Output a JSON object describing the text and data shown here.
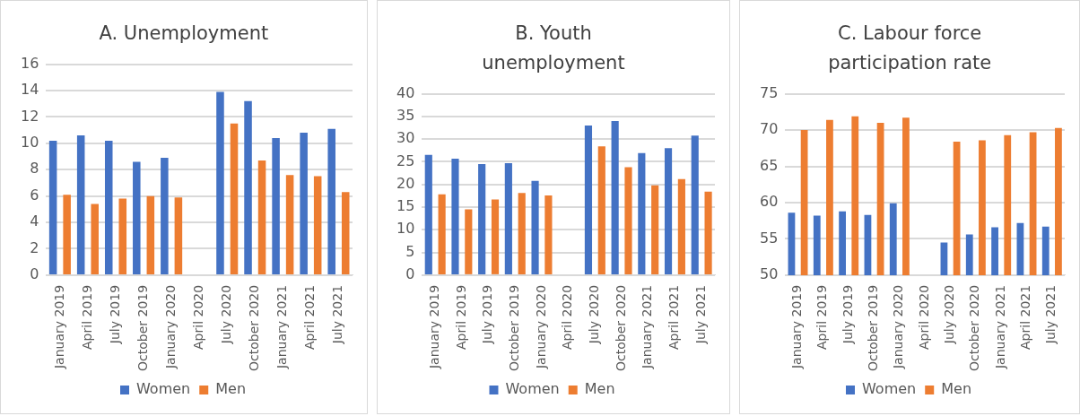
{
  "chart_data": [
    {
      "type": "bar",
      "title": "A. Unemployment",
      "categories": [
        "January 2019",
        "April 2019",
        "July 2019",
        "October 2019",
        "January 2020",
        "April 2020",
        "July 2020",
        "October 2020",
        "January 2021",
        "April 2021",
        "July 2021"
      ],
      "series": [
        {
          "name": "Women",
          "color": "#4472c4",
          "values": [
            10.2,
            10.6,
            10.2,
            8.6,
            8.9,
            null,
            13.9,
            13.2,
            10.4,
            10.8,
            11.1
          ]
        },
        {
          "name": "Men",
          "color": "#ed7d31",
          "values": [
            6.1,
            5.4,
            5.8,
            6.0,
            5.9,
            null,
            11.5,
            8.7,
            7.6,
            7.5,
            6.3
          ]
        }
      ],
      "ylim": [
        0,
        16
      ],
      "yticks": [
        0,
        2,
        4,
        6,
        8,
        10,
        12,
        14,
        16
      ],
      "grid": "y",
      "legend": "bottom"
    },
    {
      "type": "bar",
      "title": "B. Youth unemployment",
      "categories": [
        "January 2019",
        "April 2019",
        "July 2019",
        "October 2019",
        "January 2020",
        "April 2020",
        "July 2020",
        "October 2020",
        "January 2021",
        "April 2021",
        "July 2021"
      ],
      "series": [
        {
          "name": "Women",
          "color": "#4472c4",
          "values": [
            26.5,
            25.7,
            24.5,
            24.7,
            20.8,
            null,
            33.0,
            34.0,
            26.9,
            28.0,
            30.8
          ]
        },
        {
          "name": "Men",
          "color": "#ed7d31",
          "values": [
            17.8,
            14.5,
            16.7,
            18.1,
            17.6,
            null,
            28.4,
            23.8,
            19.8,
            21.2,
            18.4
          ]
        }
      ],
      "ylim": [
        0,
        40
      ],
      "yticks": [
        0,
        5,
        10,
        15,
        20,
        25,
        30,
        35,
        40
      ],
      "grid": "y",
      "legend": "bottom"
    },
    {
      "type": "bar",
      "title": "C. Labour force participation rate",
      "categories": [
        "January 2019",
        "April 2019",
        "July 2019",
        "October 2019",
        "January 2020",
        "April 2020",
        "July 2020",
        "October 2020",
        "January 2021",
        "April 2021",
        "July 2021"
      ],
      "series": [
        {
          "name": "Women",
          "color": "#4472c4",
          "values": [
            58.6,
            58.2,
            58.8,
            58.3,
            59.9,
            null,
            54.5,
            55.6,
            56.6,
            57.2,
            56.7
          ]
        },
        {
          "name": "Men",
          "color": "#ed7d31",
          "values": [
            70.0,
            71.4,
            71.9,
            71.0,
            71.7,
            null,
            68.4,
            68.6,
            69.3,
            69.7,
            70.3
          ]
        }
      ],
      "ylim": [
        50,
        75
      ],
      "yticks": [
        50,
        55,
        60,
        65,
        70,
        75
      ],
      "grid": "y",
      "legend": "bottom"
    }
  ]
}
